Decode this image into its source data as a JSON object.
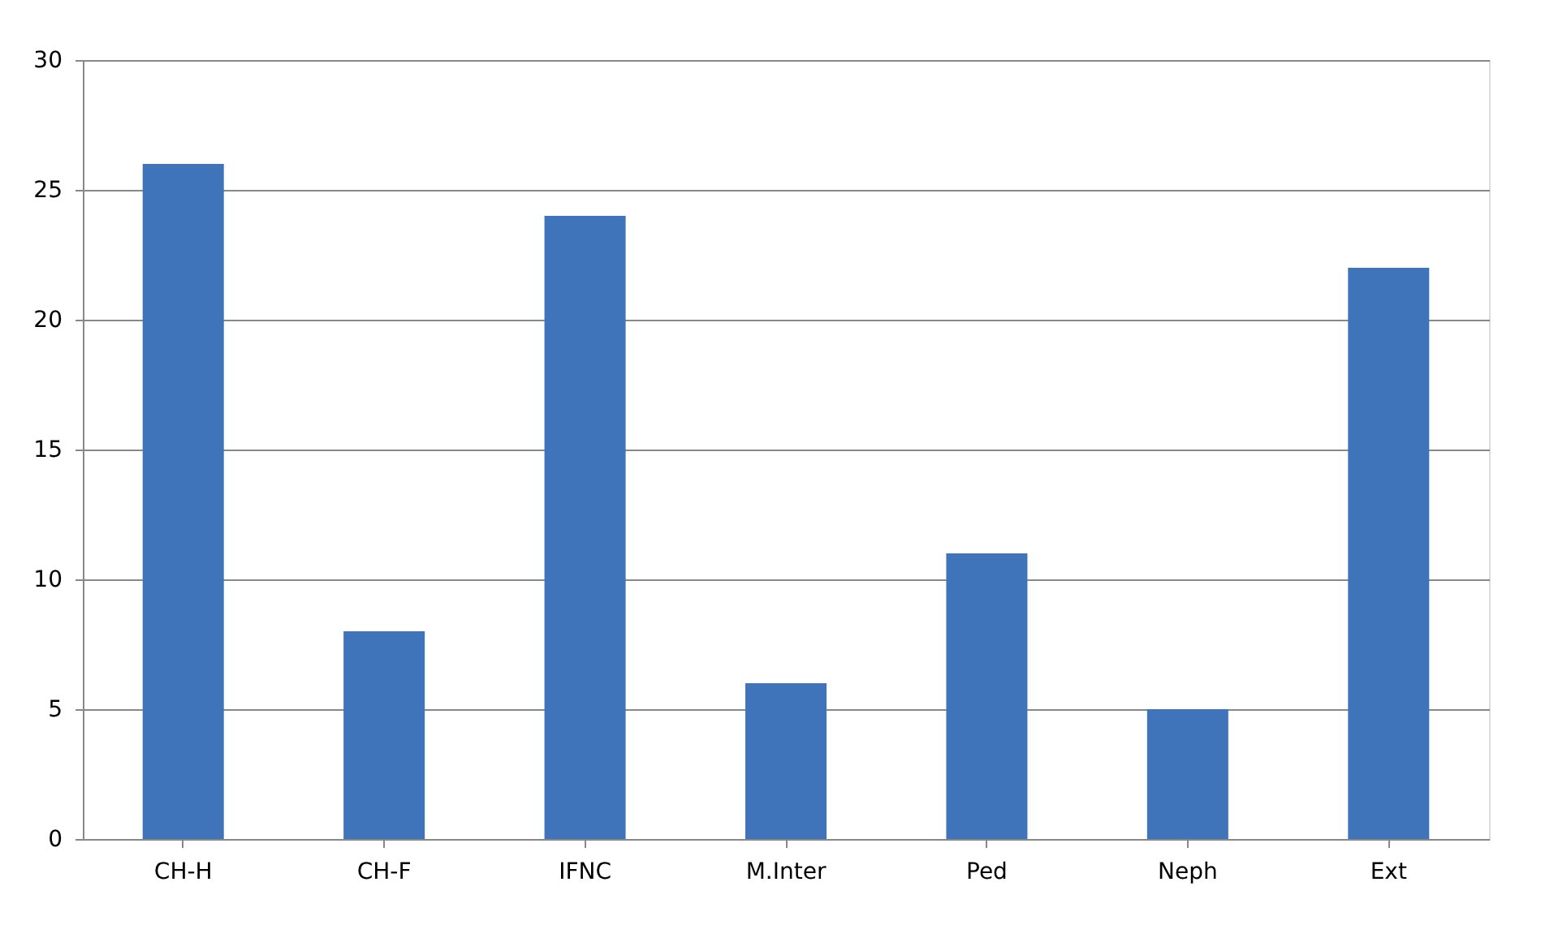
{
  "chart_data": {
    "type": "bar",
    "categories": [
      "CH-H",
      "CH-F",
      "IFNC",
      "M.Inter",
      "Ped",
      "Neph",
      "Ext"
    ],
    "values": [
      26,
      8,
      24,
      6,
      11,
      5,
      22
    ],
    "color": "#3f74ba",
    "ylim": [
      0,
      30
    ],
    "yticks": [
      0,
      5,
      10,
      15,
      20,
      25,
      30
    ],
    "grid": "y"
  }
}
